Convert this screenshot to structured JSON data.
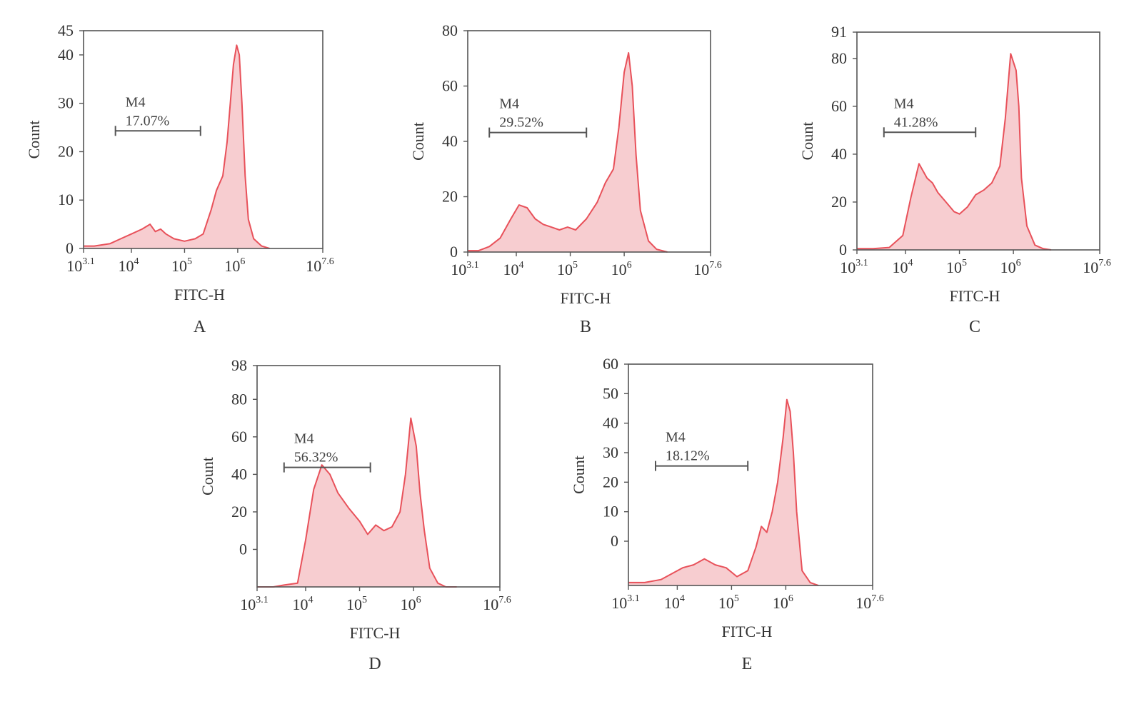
{
  "figure": {
    "x_axis_label": "FITC-H",
    "y_axis_label": "Count",
    "x_tick_labels": [
      {
        "base": "10",
        "exp": "3.1",
        "value": 3.1
      },
      {
        "base": "10",
        "exp": "4",
        "value": 4
      },
      {
        "base": "10",
        "exp": "5",
        "value": 5
      },
      {
        "base": "10",
        "exp": "6",
        "value": 6
      },
      {
        "base": "10",
        "exp": "7.6",
        "value": 7.6
      }
    ],
    "colors": {
      "line": "#e8515a",
      "fill": "#f7cdd0",
      "frame": "#555555",
      "gate": "#555555"
    }
  },
  "chart_data": [
    {
      "type": "area",
      "panel": "A",
      "xlabel": "FITC-H",
      "ylabel": "Count",
      "x_scale": "log10",
      "xlim": [
        3.1,
        7.6
      ],
      "ylim": [
        0,
        45
      ],
      "yticks": [
        0,
        10,
        20,
        30,
        40,
        45
      ],
      "gate": {
        "name": "M4",
        "percent": "17.07%",
        "x_range": [
          3.7,
          5.3
        ]
      },
      "x": [
        3.1,
        3.3,
        3.6,
        3.8,
        4.0,
        4.2,
        4.35,
        4.45,
        4.55,
        4.65,
        4.8,
        5.0,
        5.2,
        5.35,
        5.5,
        5.6,
        5.72,
        5.8,
        5.86,
        5.92,
        5.98,
        6.03,
        6.08,
        6.14,
        6.2,
        6.3,
        6.45,
        6.6
      ],
      "y": [
        0.5,
        0.5,
        1,
        2,
        3,
        4,
        5,
        3.5,
        4,
        3,
        2,
        1.5,
        2,
        3,
        8,
        12,
        15,
        22,
        30,
        38,
        42,
        40,
        30,
        15,
        6,
        2,
        0.5,
        0
      ]
    },
    {
      "type": "area",
      "panel": "B",
      "xlabel": "FITC-H",
      "ylabel": "Count",
      "x_scale": "log10",
      "xlim": [
        3.1,
        7.6
      ],
      "ylim": [
        0,
        80
      ],
      "yticks": [
        0,
        20,
        40,
        60,
        80
      ],
      "gate": {
        "name": "M4",
        "percent": "29.52%",
        "x_range": [
          3.5,
          5.3
        ]
      },
      "x": [
        3.1,
        3.3,
        3.5,
        3.7,
        3.9,
        4.05,
        4.2,
        4.35,
        4.5,
        4.65,
        4.8,
        4.95,
        5.1,
        5.3,
        5.5,
        5.65,
        5.8,
        5.9,
        6.0,
        6.08,
        6.15,
        6.22,
        6.3,
        6.45,
        6.6,
        6.8
      ],
      "y": [
        0.5,
        0.5,
        2,
        5,
        12,
        17,
        16,
        12,
        10,
        9,
        8,
        9,
        8,
        12,
        18,
        25,
        30,
        45,
        65,
        72,
        60,
        35,
        15,
        4,
        1,
        0
      ]
    },
    {
      "type": "area",
      "panel": "C",
      "xlabel": "FITC-H",
      "ylabel": "Count",
      "x_scale": "log10",
      "xlim": [
        3.1,
        7.6
      ],
      "ylim": [
        0,
        91
      ],
      "yticks": [
        0,
        20,
        40,
        60,
        80,
        91
      ],
      "gate": {
        "name": "M4",
        "percent": "41.28%",
        "x_range": [
          3.6,
          5.3
        ]
      },
      "x": [
        3.1,
        3.4,
        3.7,
        3.95,
        4.1,
        4.25,
        4.4,
        4.5,
        4.6,
        4.75,
        4.9,
        5.0,
        5.15,
        5.3,
        5.45,
        5.6,
        5.75,
        5.85,
        5.95,
        6.05,
        6.1,
        6.15,
        6.25,
        6.4,
        6.55,
        6.7
      ],
      "y": [
        0.5,
        0.5,
        1,
        6,
        22,
        36,
        30,
        28,
        24,
        20,
        16,
        15,
        18,
        23,
        25,
        28,
        35,
        55,
        82,
        75,
        60,
        30,
        10,
        2,
        0.5,
        0
      ]
    },
    {
      "type": "area",
      "panel": "D",
      "xlabel": "FITC-H",
      "ylabel": "Count",
      "x_scale": "log10",
      "xlim": [
        3.1,
        7.6
      ],
      "ylim": [
        -20,
        98
      ],
      "yticks": [
        0,
        20,
        40,
        60,
        80,
        98
      ],
      "gate": {
        "name": "M4",
        "percent": "56.32%",
        "x_range": [
          3.6,
          5.2
        ]
      },
      "x": [
        3.1,
        3.4,
        3.6,
        3.85,
        4.0,
        4.15,
        4.3,
        4.45,
        4.6,
        4.8,
        5.0,
        5.15,
        5.3,
        5.45,
        5.6,
        5.75,
        5.85,
        5.95,
        6.05,
        6.12,
        6.2,
        6.3,
        6.45,
        6.6,
        6.8
      ],
      "y": [
        -20,
        -20,
        -19,
        -18,
        5,
        32,
        45,
        40,
        30,
        22,
        15,
        8,
        13,
        10,
        12,
        20,
        40,
        70,
        55,
        30,
        10,
        -10,
        -18,
        -20,
        -20
      ]
    },
    {
      "type": "area",
      "panel": "E",
      "xlabel": "FITC-H",
      "ylabel": "Count",
      "x_scale": "log10",
      "xlim": [
        3.1,
        7.6
      ],
      "ylim": [
        -15,
        60
      ],
      "yticks": [
        0,
        10,
        20,
        30,
        40,
        50,
        60
      ],
      "gate": {
        "name": "M4",
        "percent": "18.12%",
        "x_range": [
          3.6,
          5.3
        ]
      },
      "x": [
        3.1,
        3.4,
        3.7,
        3.9,
        4.1,
        4.3,
        4.5,
        4.7,
        4.9,
        5.1,
        5.3,
        5.45,
        5.55,
        5.65,
        5.75,
        5.85,
        5.95,
        6.02,
        6.08,
        6.14,
        6.2,
        6.3,
        6.45,
        6.6
      ],
      "y": [
        -14,
        -14,
        -13,
        -11,
        -9,
        -8,
        -6,
        -8,
        -9,
        -12,
        -10,
        -2,
        5,
        3,
        10,
        20,
        35,
        48,
        44,
        30,
        10,
        -10,
        -14,
        -15
      ]
    }
  ]
}
